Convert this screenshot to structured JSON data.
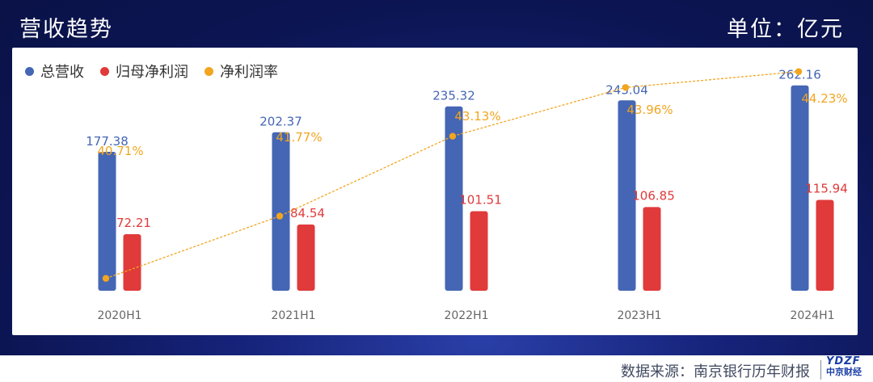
{
  "header": {
    "title": "营收趋势",
    "unit": "单位：亿元"
  },
  "footer": {
    "source": "数据来源：南京银行历年财报",
    "logo_top": "YDZF",
    "logo_bottom": "中京财经"
  },
  "colors": {
    "revenue": "#4466b4",
    "profit": "#e03a3a",
    "margin": "#f2a51e"
  },
  "chart_data": {
    "type": "bar",
    "categories": [
      "2020H1",
      "2021H1",
      "2022H1",
      "2023H1",
      "2024H1"
    ],
    "series": [
      {
        "name": "总营收",
        "kind": "bar",
        "values": [
          177.38,
          202.37,
          235.32,
          243.04,
          262.16
        ],
        "labels": [
          "177.38",
          "202.37",
          "235.32",
          "243.04",
          "262.16"
        ]
      },
      {
        "name": "归母净利润",
        "kind": "bar",
        "values": [
          72.21,
          84.54,
          101.51,
          106.85,
          115.94
        ],
        "labels": [
          "72.21",
          "84.54",
          "101.51",
          "106.85",
          "115.94"
        ]
      },
      {
        "name": "净利润率",
        "kind": "line",
        "values": [
          40.71,
          41.77,
          43.13,
          43.96,
          44.23
        ],
        "labels": [
          "40.71%",
          "41.77%",
          "43.13%",
          "43.96%",
          "44.23%"
        ]
      }
    ],
    "ylim": [
      0,
      300
    ],
    "y2lim": [
      40.5,
      44.5
    ],
    "legend": "top-left",
    "grid": false,
    "title": "营收趋势",
    "xlabel": "",
    "ylabel": ""
  }
}
